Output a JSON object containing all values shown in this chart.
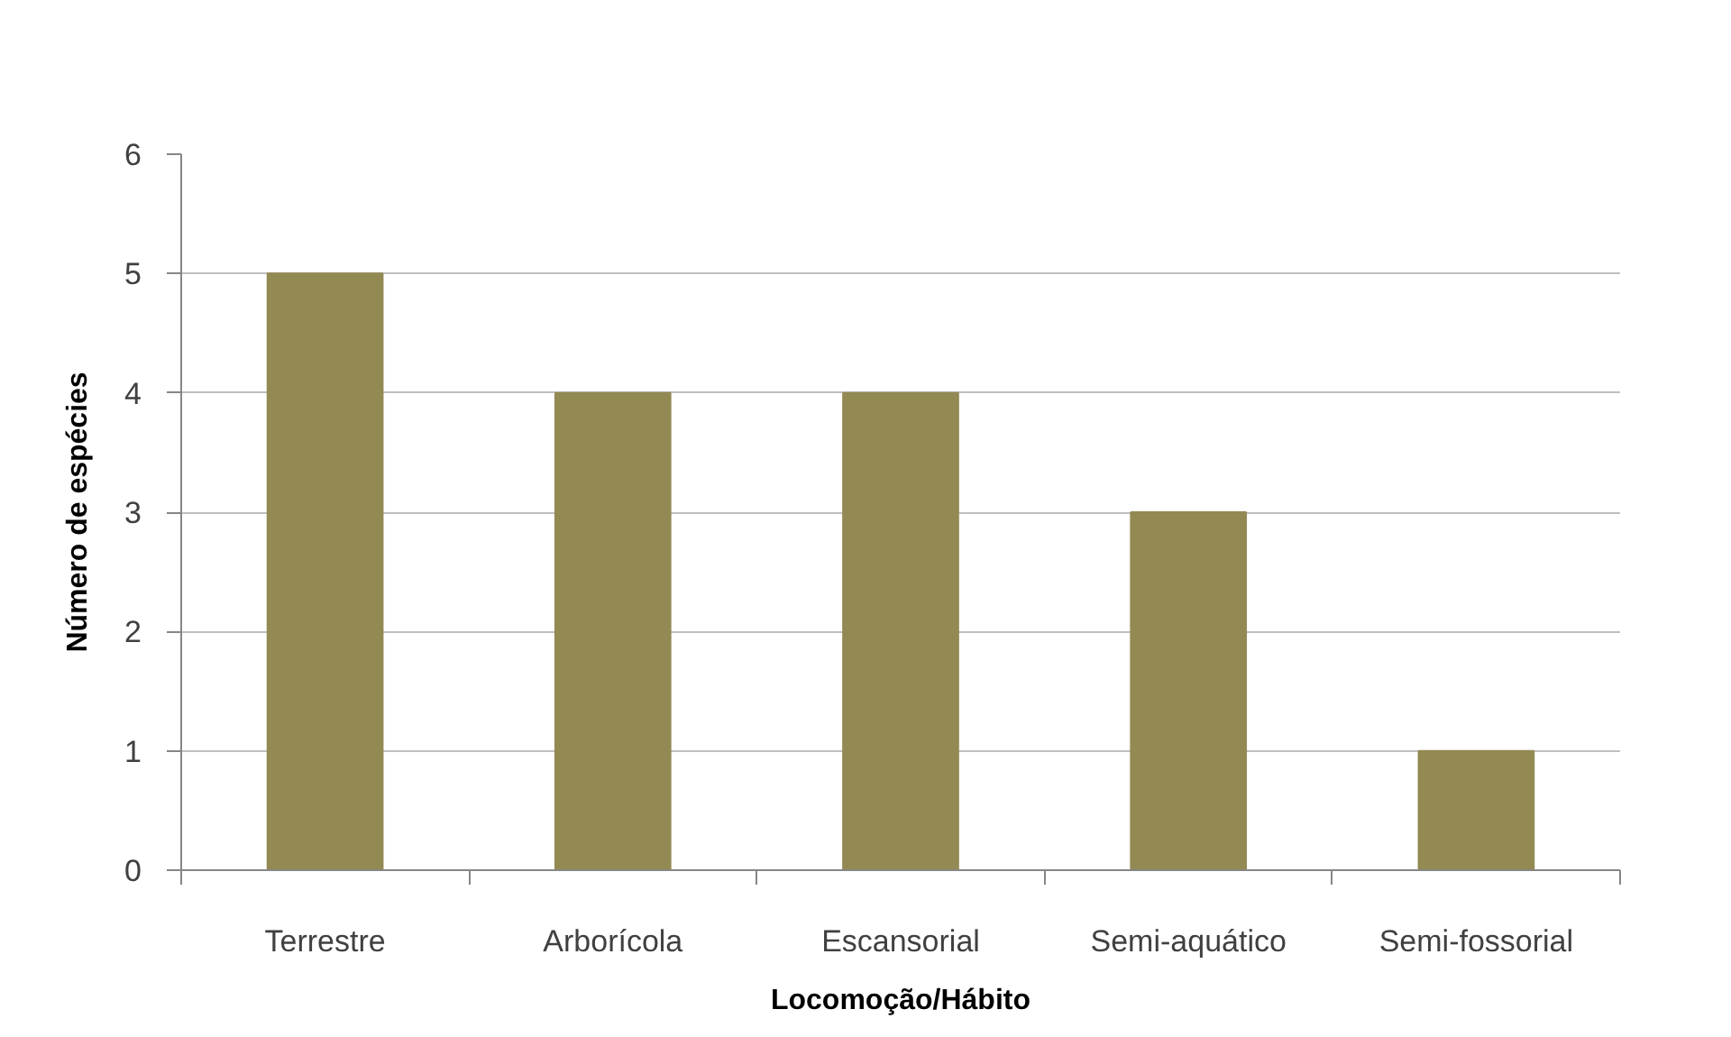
{
  "chart_data": {
    "type": "bar",
    "xlabel": "Locomoção/Hábito",
    "ylabel": "Número de espécies",
    "categories": [
      "Terrestre",
      "Arborícola",
      "Escansorial",
      "Semi-aquático",
      "Semi-fossorial"
    ],
    "values": [
      5,
      4,
      4,
      3,
      1
    ],
    "color": "#938953",
    "ylim": [
      0,
      6
    ],
    "yticks": [
      0,
      1,
      2,
      3,
      4,
      5,
      6
    ],
    "grid": "y"
  }
}
